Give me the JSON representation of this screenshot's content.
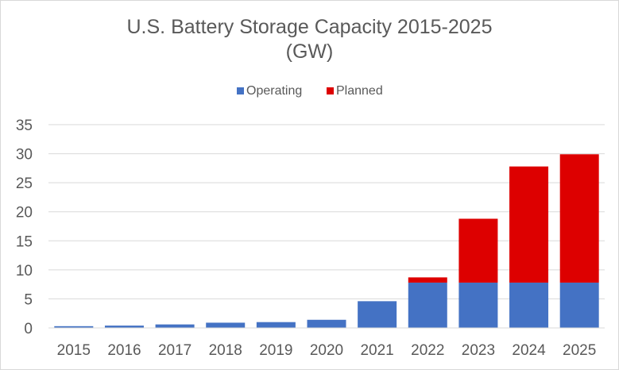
{
  "chart_data": {
    "type": "bar",
    "stacked": true,
    "title": "U.S. Battery Storage Capacity 2015-2025",
    "subtitle": "(GW)",
    "xlabel": "",
    "ylabel": "",
    "ylim": [
      0,
      35
    ],
    "yticks": [
      0,
      5,
      10,
      15,
      20,
      25,
      30,
      35
    ],
    "grid": true,
    "legend_position": "top",
    "categories": [
      "2015",
      "2016",
      "2017",
      "2018",
      "2019",
      "2020",
      "2021",
      "2022",
      "2023",
      "2024",
      "2025"
    ],
    "series": [
      {
        "name": "Operating",
        "color": "#4472C4",
        "values": [
          0.3,
          0.4,
          0.6,
          0.9,
          1.0,
          1.4,
          4.6,
          7.8,
          7.8,
          7.8,
          7.8
        ]
      },
      {
        "name": "Planned",
        "color": "#DD0000",
        "values": [
          0,
          0,
          0,
          0,
          0,
          0,
          0,
          0.9,
          11.0,
          20.0,
          22.1
        ]
      }
    ]
  }
}
